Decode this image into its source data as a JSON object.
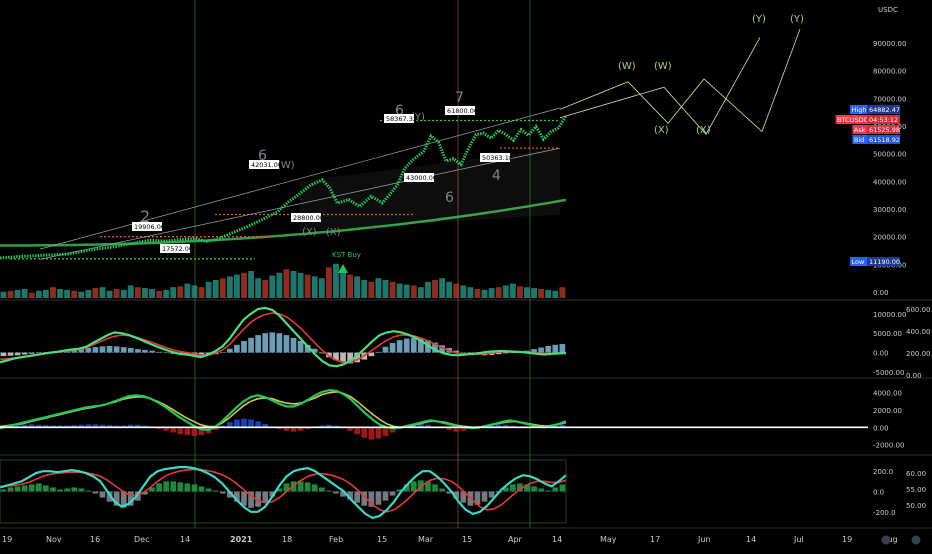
{
  "chart_data": {
    "type": "line",
    "symbol": "BTCUSDC",
    "currency": "USDC",
    "panes": [
      {
        "name": "price",
        "axis_ticks": [
          90000,
          80000,
          70000,
          60000,
          50000,
          40000,
          30000,
          20000,
          10000,
          0
        ],
        "axis_labels": [
          "90000.00",
          "80000.00",
          "70000.00",
          "60000.00",
          "50000.00",
          "40000.00",
          "30000.00",
          "20000.00",
          "10000.00",
          "0.00"
        ],
        "ylim": [
          0,
          100000
        ],
        "price_series": [
          [
            0,
            12300
          ],
          [
            6,
            12900
          ],
          [
            12,
            13300
          ],
          [
            18,
            13700
          ],
          [
            24,
            15200
          ],
          [
            30,
            16200
          ],
          [
            36,
            17800
          ],
          [
            40,
            18700
          ],
          [
            44,
            18400
          ],
          [
            48,
            18900
          ],
          [
            52,
            19400
          ],
          [
            55,
            18300
          ],
          [
            58,
            19100
          ],
          [
            62,
            21400
          ],
          [
            66,
            23600
          ],
          [
            70,
            26200
          ],
          [
            74,
            28900
          ],
          [
            77,
            32600
          ],
          [
            80,
            35600
          ],
          [
            83,
            38700
          ],
          [
            86,
            40500
          ],
          [
            88,
            37500
          ],
          [
            90,
            32100
          ],
          [
            93,
            33400
          ],
          [
            96,
            30900
          ],
          [
            99,
            34600
          ],
          [
            102,
            32200
          ],
          [
            104,
            35300
          ],
          [
            106,
            38600
          ],
          [
            108,
            44700
          ],
          [
            110,
            47600
          ],
          [
            113,
            50800
          ],
          [
            115,
            56400
          ],
          [
            117,
            54100
          ],
          [
            119,
            47300
          ],
          [
            121,
            48200
          ],
          [
            123,
            46100
          ],
          [
            125,
            51900
          ],
          [
            127,
            56900
          ],
          [
            129,
            57400
          ],
          [
            131,
            55600
          ],
          [
            133,
            58400
          ],
          [
            135,
            56900
          ],
          [
            137,
            54800
          ],
          [
            139,
            58700
          ],
          [
            141,
            56600
          ],
          [
            143,
            59800
          ],
          [
            145,
            55200
          ],
          [
            147,
            57900
          ],
          [
            149,
            59300
          ],
          [
            151,
            63700
          ]
        ],
        "projection_labels": [
          "(W)",
          "(W)",
          "(X)",
          "(X)",
          "(Y)",
          "(Y)"
        ],
        "price_labels": [
          "19906.00",
          "17572.00",
          "42031.00",
          "28800.00",
          "58367.32",
          "43000.00",
          "61800.00",
          "50363.18"
        ],
        "wave_labels": [
          "2",
          "6",
          "(W)",
          "(X)",
          "(X)",
          "6",
          "(Y)",
          "7",
          "6",
          "4"
        ],
        "signal_label": "KST Buy",
        "volume": [
          7,
          8,
          9,
          10,
          6,
          8,
          9,
          12,
          10,
          9,
          8,
          7,
          9,
          11,
          12,
          8,
          10,
          9,
          14,
          12,
          11,
          10,
          8,
          9,
          12,
          13,
          16,
          14,
          12,
          18,
          20,
          22,
          24,
          26,
          28,
          30,
          22,
          20,
          25,
          28,
          32,
          30,
          28,
          26,
          24,
          22,
          34,
          38,
          30,
          26,
          24,
          20,
          18,
          22,
          20,
          18,
          16,
          15,
          14,
          12,
          18,
          20,
          22,
          18,
          16,
          14,
          12,
          10,
          9,
          11,
          12,
          14,
          16,
          13,
          12,
          11,
          10,
          9,
          8,
          12
        ],
        "hi_low": {
          "high_label": "High",
          "high_value": "64882.47",
          "low_label": "Low",
          "low_value": "11190.00"
        },
        "quote_tags": [
          {
            "label": "BTCUSDC",
            "value": "04:53:12",
            "color": "#f23645"
          },
          {
            "label": "Ask",
            "value": "61525.98",
            "color": "#f23645"
          },
          {
            "label": "Bid",
            "value": "61518.92",
            "color": "#2962ff"
          }
        ]
      },
      {
        "name": "momentum-1",
        "axis_labels_left": [
          "10000.00",
          "5000.00",
          "0.00",
          "-5000.00"
        ],
        "axis_labels_right": [
          "600.00",
          "400.00",
          "200.00",
          "0.00"
        ],
        "ylim": [
          -5000,
          12000
        ],
        "fast": [
          -2500,
          -2000,
          -1500,
          -1200,
          -900,
          -600,
          -300,
          0,
          200,
          500,
          800,
          1000,
          1500,
          2500,
          3500,
          4500,
          5200,
          5000,
          4500,
          3800,
          3000,
          2200,
          1500,
          800,
          200,
          -300,
          -500,
          -800,
          -1200,
          -600,
          300,
          1500,
          3500,
          6000,
          8500,
          10000,
          11200,
          11500,
          11000,
          9500,
          7500,
          5500,
          3500,
          1500,
          -500,
          -2200,
          -3300,
          -3500,
          -3000,
          -2000,
          -500,
          1200,
          3000,
          4500,
          5200,
          5500,
          5200,
          4600,
          3800,
          2800,
          1500,
          500,
          -200,
          -600,
          -700,
          -500,
          -300,
          -100,
          200,
          300,
          400,
          300,
          200,
          100,
          -100,
          -300,
          -500,
          -300,
          -200,
          -100
        ],
        "slow": [
          -1800,
          -1600,
          -1400,
          -1200,
          -1000,
          -700,
          -400,
          -100,
          100,
          300,
          500,
          800,
          1200,
          2000,
          2800,
          3600,
          4200,
          4500,
          4400,
          4000,
          3400,
          2800,
          2100,
          1400,
          800,
          300,
          0,
          -300,
          -600,
          -600,
          -200,
          600,
          2000,
          4000,
          6000,
          7800,
          9000,
          9800,
          10200,
          10000,
          9200,
          7800,
          6200,
          4300,
          2400,
          600,
          -1000,
          -2000,
          -2500,
          -2400,
          -1700,
          -600,
          700,
          2000,
          3200,
          4100,
          4500,
          4500,
          4200,
          3600,
          2800,
          1900,
          1000,
          300,
          -200,
          -400,
          -500,
          -400,
          -200,
          0,
          200,
          300,
          300,
          200,
          100,
          -100,
          -200,
          -250,
          -250,
          -200
        ],
        "hist": [
          -900,
          -800,
          -700,
          -500,
          -300,
          -100,
          100,
          200,
          400,
          600,
          800,
          1000,
          1200,
          1400,
          1600,
          1700,
          1600,
          1400,
          1200,
          900,
          700,
          500,
          200,
          -100,
          -300,
          -500,
          -700,
          -800,
          -900,
          -700,
          -400,
          100,
          1000,
          2000,
          3000,
          3800,
          4500,
          5000,
          5200,
          5000,
          4500,
          3800,
          3000,
          2000,
          1000,
          -200,
          -1200,
          -2000,
          -2600,
          -2800,
          -2500,
          -1800,
          -900,
          200,
          1500,
          2500,
          3200,
          3600,
          3800,
          3600,
          3200,
          2600,
          1900,
          1200,
          500,
          0,
          -400,
          -600,
          -700,
          -600,
          -400,
          -200,
          0,
          200,
          500,
          900,
          1300,
          1700,
          2000,
          2200
        ]
      },
      {
        "name": "momentum-2",
        "axis_labels": [
          "4000.00",
          "2000.00",
          "0.00",
          "-2000.00"
        ],
        "ylim": [
          -2500,
          5000
        ],
        "fast": [
          -100,
          100,
          300,
          500,
          700,
          900,
          1100,
          1300,
          1500,
          1700,
          1900,
          2100,
          2300,
          2400,
          2500,
          2700,
          3000,
          3300,
          3600,
          3700,
          3600,
          3300,
          2900,
          2400,
          1800,
          1200,
          700,
          200,
          -200,
          -300,
          0,
          700,
          1500,
          2300,
          3000,
          3500,
          3700,
          3500,
          3100,
          2700,
          2400,
          2400,
          2700,
          3200,
          3700,
          4100,
          4300,
          4200,
          3800,
          3200,
          2400,
          1600,
          900,
          300,
          0,
          -100,
          0,
          200,
          400,
          600,
          800,
          700,
          500,
          300,
          100,
          0,
          -100,
          0,
          200,
          400,
          600,
          800,
          700,
          500,
          300,
          100,
          0,
          200,
          400,
          700
        ],
        "slow": [
          100,
          200,
          300,
          400,
          600,
          800,
          1000,
          1200,
          1400,
          1600,
          1800,
          2000,
          2200,
          2300,
          2500,
          2700,
          2900,
          3200,
          3400,
          3500,
          3500,
          3300,
          3000,
          2600,
          2100,
          1600,
          1100,
          700,
          300,
          100,
          100,
          500,
          1100,
          1800,
          2500,
          3000,
          3300,
          3400,
          3300,
          3000,
          2800,
          2700,
          2800,
          3100,
          3400,
          3800,
          4000,
          4100,
          3900,
          3500,
          2900,
          2200,
          1500,
          900,
          400,
          100,
          0,
          100,
          300,
          500,
          700,
          700,
          600,
          400,
          200,
          100,
          0,
          50,
          200,
          350,
          500,
          650,
          650,
          550,
          400,
          250,
          150,
          200,
          350,
          550
        ],
        "hist": [
          100,
          200,
          250,
          300,
          350,
          300,
          250,
          200,
          200,
          200,
          250,
          300,
          350,
          350,
          300,
          250,
          200,
          200,
          300,
          300,
          200,
          0,
          -200,
          -400,
          -600,
          -800,
          -900,
          -1000,
          -900,
          -700,
          -300,
          200,
          600,
          900,
          1000,
          900,
          700,
          400,
          100,
          -200,
          -400,
          -500,
          -400,
          -200,
          0,
          200,
          300,
          200,
          -100,
          -400,
          -800,
          -1200,
          -1400,
          -1300,
          -1000,
          -600,
          -200,
          100,
          300,
          400,
          300,
          100,
          -100,
          -300,
          -500,
          -400,
          -200,
          0,
          100,
          200,
          300,
          300,
          200,
          100,
          0,
          -100,
          0,
          100,
          200,
          300
        ],
        "zero_label": "0.00"
      },
      {
        "name": "rsi-stoch",
        "axis_labels_left": [
          "200.0",
          "0.0",
          "-200.0"
        ],
        "axis_labels_right": [
          "60.00",
          "55.00",
          "50.00"
        ],
        "ylim": [
          -300,
          300
        ],
        "fast": [
          40,
          60,
          80,
          100,
          140,
          180,
          200,
          200,
          190,
          200,
          210,
          200,
          180,
          150,
          100,
          0,
          -100,
          -150,
          -120,
          -50,
          50,
          150,
          200,
          220,
          230,
          240,
          240,
          230,
          210,
          180,
          140,
          80,
          0,
          -80,
          -150,
          -200,
          -200,
          -150,
          -50,
          60,
          150,
          200,
          220,
          230,
          200,
          150,
          100,
          50,
          0,
          -80,
          -150,
          -220,
          -260,
          -240,
          -180,
          -100,
          0,
          80,
          150,
          200,
          200,
          150,
          80,
          0,
          -100,
          -180,
          -220,
          -200,
          -140,
          -60,
          20,
          80,
          130,
          160,
          150,
          120,
          80,
          50,
          100,
          160
        ],
        "slow": [
          50,
          55,
          60,
          70,
          90,
          120,
          150,
          170,
          180,
          185,
          190,
          190,
          185,
          170,
          150,
          110,
          60,
          10,
          -30,
          -40,
          -10,
          40,
          100,
          150,
          180,
          200,
          210,
          215,
          215,
          205,
          190,
          165,
          130,
          80,
          20,
          -40,
          -90,
          -110,
          -100,
          -60,
          0,
          60,
          110,
          150,
          170,
          175,
          165,
          145,
          115,
          70,
          10,
          -60,
          -130,
          -180,
          -200,
          -180,
          -130,
          -70,
          0,
          60,
          110,
          130,
          125,
          100,
          50,
          -20,
          -90,
          -150,
          -180,
          -170,
          -130,
          -70,
          -10,
          40,
          80,
          100,
          100,
          90,
          90,
          110
        ],
        "hist": [
          20,
          40,
          50,
          60,
          70,
          80,
          60,
          40,
          20,
          30,
          40,
          30,
          10,
          -20,
          -60,
          -100,
          -140,
          -160,
          -140,
          -90,
          -30,
          40,
          80,
          100,
          100,
          90,
          80,
          70,
          50,
          30,
          10,
          -20,
          -60,
          -100,
          -140,
          -160,
          -150,
          -110,
          -50,
          30,
          80,
          100,
          100,
          90,
          70,
          40,
          10,
          -20,
          -50,
          -80,
          -110,
          -140,
          -150,
          -130,
          -90,
          -40,
          20,
          70,
          100,
          110,
          100,
          70,
          30,
          -20,
          -70,
          -110,
          -140,
          -130,
          -100,
          -60,
          -10,
          40,
          70,
          80,
          70,
          50,
          30,
          10,
          40,
          70
        ]
      }
    ],
    "x_axis_labels": [
      "19",
      "Nov",
      "16",
      "Dec",
      "14",
      "2021",
      "18",
      "Feb",
      "15",
      "Mar",
      "15",
      "Apr",
      "14",
      "May",
      "17",
      "Jun",
      "14",
      "Jul",
      "19",
      "Aug"
    ]
  },
  "colors": {
    "background": "#000000",
    "bull": "#22c55e",
    "bear": "#e74c3c",
    "neutral": "#aab0b8",
    "volume_up": "#2a9d8f",
    "volume_down": "#c0392b",
    "ma_long": "#2f9e44",
    "projection": "#d7e894",
    "vline_green": "#2e7d32",
    "vline_orange": "#a0522d"
  }
}
